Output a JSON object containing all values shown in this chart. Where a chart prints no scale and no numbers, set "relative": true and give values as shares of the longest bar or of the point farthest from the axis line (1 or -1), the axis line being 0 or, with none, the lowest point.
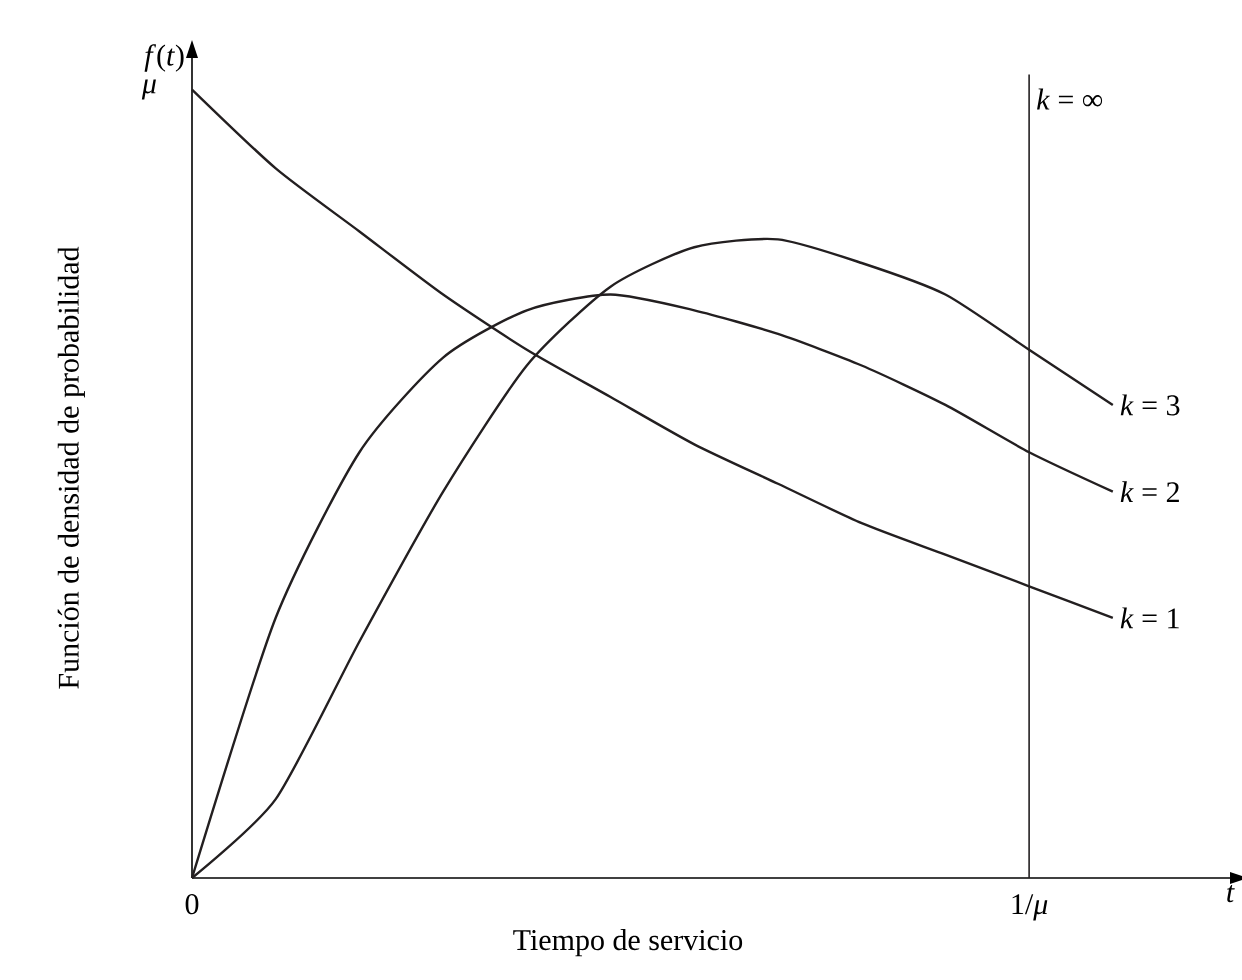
{
  "chart_data": {
    "type": "line",
    "xlabel": "Tiempo de servicio",
    "ylabel": "Función de densidad de probabilidad",
    "annotations": [
      "*f*(*t*)",
      "*t*",
      "μ"
    ],
    "relative": true,
    "x": [
      0,
      0.1,
      0.2,
      0.3,
      0.4,
      0.5,
      0.6,
      0.7,
      0.8,
      0.9,
      1.0,
      1.1
    ],
    "series": [
      {
        "name": "*k* = 1",
        "color": "#231f20",
        "values": [
          1,
          0.9,
          0.82,
          0.74,
          0.67,
          0.61,
          0.55,
          0.5,
          0.45,
          0.41,
          0.37,
          0.33
        ]
      },
      {
        "name": "*k* = 2",
        "color": "#231f20",
        "values": [
          0,
          0.33,
          0.54,
          0.66,
          0.72,
          0.74,
          0.72,
          0.69,
          0.65,
          0.6,
          0.54,
          0.49
        ]
      },
      {
        "name": "*k* = 3",
        "color": "#231f20",
        "values": [
          0,
          0.1,
          0.3,
          0.49,
          0.65,
          0.75,
          0.8,
          0.81,
          0.78,
          0.74,
          0.67,
          0.6
        ]
      }
    ],
    "ref_lines": [
      {
        "axis": "x",
        "value": 1,
        "label": "*k* = ∞",
        "color": "#231f20"
      }
    ],
    "xlim": [
      0,
      1.24
    ],
    "xticks": [
      0,
      {
        "value": 1,
        "label": "1/*μ*"
      }
    ],
    "marker": "none",
    "line_style": "solid"
  }
}
